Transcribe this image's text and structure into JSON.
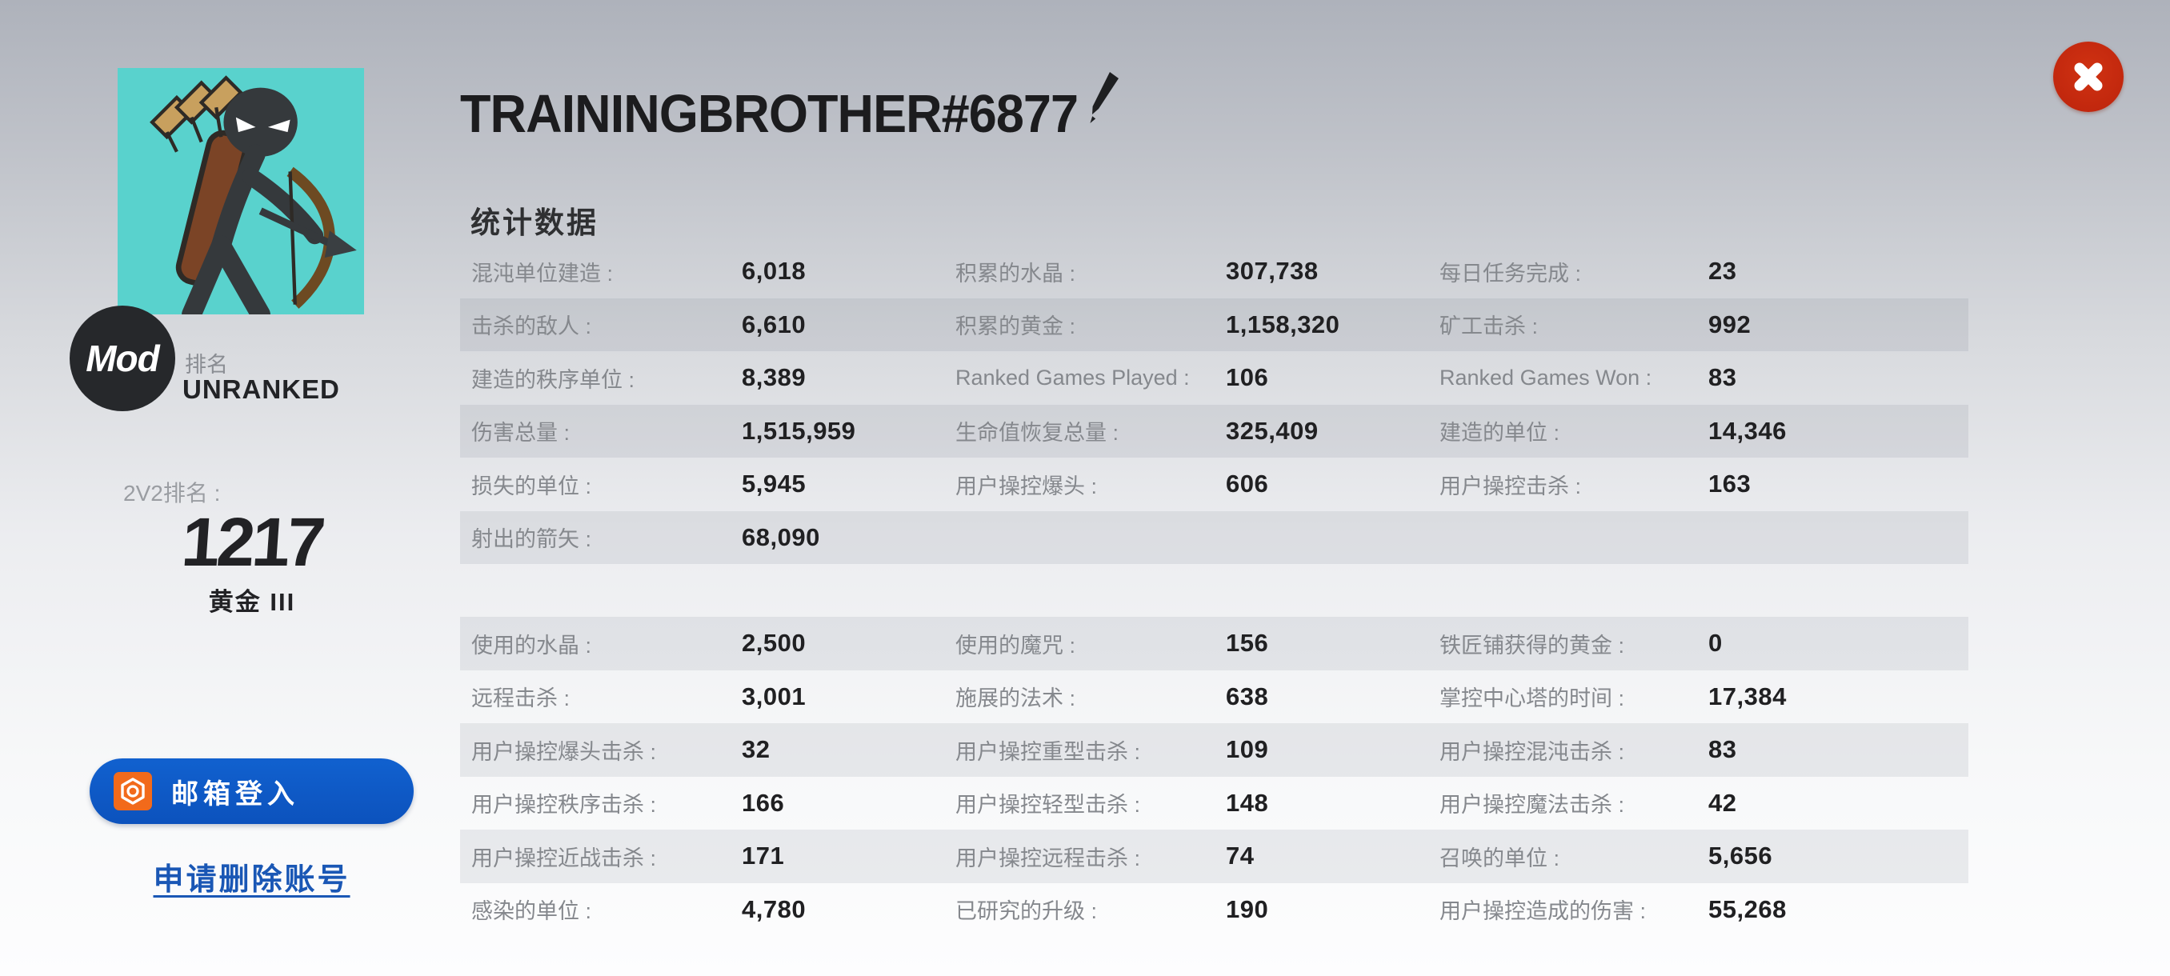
{
  "profile": {
    "name": "TRAININGBROTHER#6877",
    "badge": "Mod",
    "rank_label": "排名",
    "rank_value": "UNRANKED",
    "rank_2v2_label": "2V2排名 :",
    "rank_2v2_value": "1217",
    "tier": "黄金 III",
    "login_button_label": "邮箱登入",
    "delete_account_link": "申请删除账号"
  },
  "stats": {
    "section_title": "统计数据",
    "table1": {
      "rows": [
        {
          "shaded": false,
          "cells": [
            {
              "label": "混沌单位建造 :",
              "value": "6,018"
            },
            {
              "label": "积累的水晶 :",
              "value": "307,738"
            },
            {
              "label": "每日任务完成 :",
              "value": "23"
            }
          ]
        },
        {
          "shaded": true,
          "cells": [
            {
              "label": "击杀的敌人 :",
              "value": "6,610"
            },
            {
              "label": "积累的黄金 :",
              "value": "1,158,320"
            },
            {
              "label": "矿工击杀 :",
              "value": "992"
            }
          ]
        },
        {
          "shaded": false,
          "cells": [
            {
              "label": "建造的秩序单位 :",
              "value": "8,389"
            },
            {
              "label": "Ranked Games Played :",
              "value": "106"
            },
            {
              "label": "Ranked Games Won :",
              "value": "83"
            }
          ]
        },
        {
          "shaded": true,
          "cells": [
            {
              "label": "伤害总量 :",
              "value": "1,515,959"
            },
            {
              "label": "生命值恢复总量 :",
              "value": "325,409"
            },
            {
              "label": "建造的单位 :",
              "value": "14,346"
            }
          ]
        },
        {
          "shaded": false,
          "cells": [
            {
              "label": "损失的单位 :",
              "value": "5,945"
            },
            {
              "label": "用户操控爆头 :",
              "value": "606"
            },
            {
              "label": "用户操控击杀 :",
              "value": "163"
            }
          ]
        },
        {
          "shaded": true,
          "cells": [
            {
              "label": "射出的箭矢 :",
              "value": "68,090"
            },
            {
              "label": "",
              "value": ""
            },
            {
              "label": "",
              "value": ""
            }
          ]
        }
      ]
    },
    "table2": {
      "rows": [
        {
          "shaded": true,
          "cells": [
            {
              "label": "使用的水晶 :",
              "value": "2,500"
            },
            {
              "label": "使用的魔咒 :",
              "value": "156"
            },
            {
              "label": "铁匠铺获得的黄金 :",
              "value": "0"
            }
          ]
        },
        {
          "shaded": false,
          "cells": [
            {
              "label": "远程击杀 :",
              "value": "3,001"
            },
            {
              "label": "施展的法术 :",
              "value": "638"
            },
            {
              "label": "掌控中心塔的时间 :",
              "value": "17,384"
            }
          ]
        },
        {
          "shaded": true,
          "cells": [
            {
              "label": "用户操控爆头击杀 :",
              "value": "32"
            },
            {
              "label": "用户操控重型击杀 :",
              "value": "109"
            },
            {
              "label": "用户操控混沌击杀 :",
              "value": "83"
            }
          ]
        },
        {
          "shaded": false,
          "cells": [
            {
              "label": "用户操控秩序击杀 :",
              "value": "166"
            },
            {
              "label": "用户操控轻型击杀 :",
              "value": "148"
            },
            {
              "label": "用户操控魔法击杀 :",
              "value": "42"
            }
          ]
        },
        {
          "shaded": true,
          "cells": [
            {
              "label": "用户操控近战击杀 :",
              "value": "171"
            },
            {
              "label": "用户操控远程击杀 :",
              "value": "74"
            },
            {
              "label": "召唤的单位 :",
              "value": "5,656"
            }
          ]
        },
        {
          "shaded": false,
          "cells": [
            {
              "label": "感染的单位 :",
              "value": "4,780"
            },
            {
              "label": "已研究的升级 :",
              "value": "190"
            },
            {
              "label": "用户操控造成的伤害 :",
              "value": "55,268"
            }
          ]
        }
      ]
    }
  },
  "colors": {
    "accent_blue": "#0d57c6",
    "link_blue": "#1a57b5",
    "close_red": "#bc230c",
    "icon_orange": "#f26a1b",
    "avatar_teal": "#59d2cd",
    "row_band": "rgba(82,90,110,0.10)"
  }
}
